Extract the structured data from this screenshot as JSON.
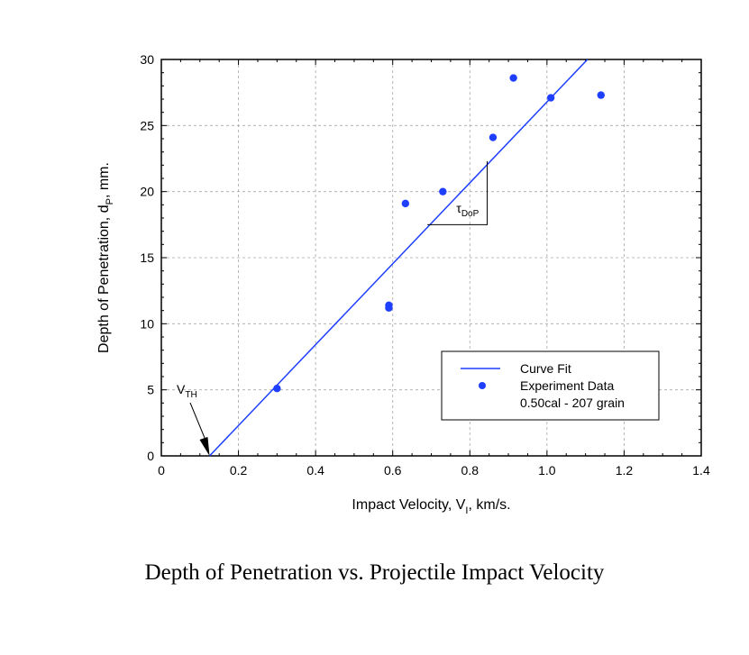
{
  "caption": "Depth of Penetration vs. Projectile Impact Velocity",
  "chart_data": {
    "type": "line",
    "x_label": {
      "main": "Impact Velocity, V",
      "sub": "I",
      "rest": ", km/s."
    },
    "y_label": {
      "main": "Depth of Penetration, d",
      "sub": "P",
      "rest": ", mm."
    },
    "xlim": [
      0,
      1.4
    ],
    "ylim": [
      0,
      30
    ],
    "x_ticks": [
      0,
      0.2,
      0.4,
      0.6,
      0.8,
      1.0,
      1.2,
      1.4
    ],
    "x_tick_labels": [
      "0",
      "0.2",
      "0.4",
      "0.6",
      "0.8",
      "1.0",
      "1.2",
      "1.4"
    ],
    "y_ticks": [
      0,
      5,
      10,
      15,
      20,
      25,
      30
    ],
    "y_tick_labels": [
      "0",
      "5",
      "10",
      "15",
      "20",
      "25",
      "30"
    ],
    "grid": true,
    "series": [
      {
        "name": "Curve Fit",
        "type": "line",
        "color": "#1f3fff",
        "x": [
          0.125,
          1.105
        ],
        "y": [
          0,
          30
        ]
      },
      {
        "name": "Experiment Data",
        "type": "scatter",
        "color": "#1f3fff",
        "x": [
          0.3,
          0.59,
          0.59,
          0.633,
          0.73,
          0.86,
          0.913,
          1.01,
          1.14
        ],
        "y": [
          5.1,
          11.2,
          11.4,
          19.1,
          20.0,
          24.1,
          28.6,
          27.1,
          27.3
        ]
      }
    ],
    "legend": {
      "position": "lower-right",
      "entries": [
        "Curve Fit",
        "Experiment Data",
        "0.50cal - 207 grain"
      ]
    },
    "annotations": {
      "threshold": {
        "main": "V",
        "sub": "TH",
        "x": 0.125,
        "y": 0
      },
      "slope": {
        "main": "τ",
        "sub": "DoP"
      }
    }
  }
}
